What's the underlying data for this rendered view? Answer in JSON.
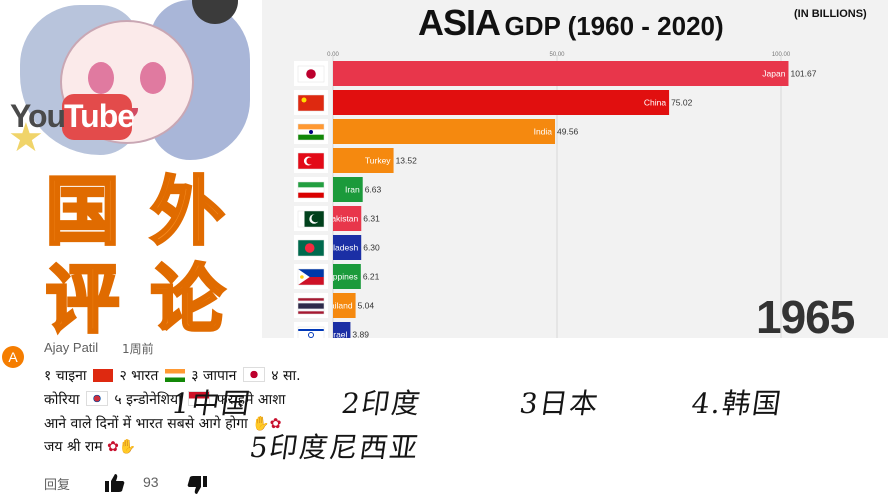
{
  "thumbnail": {
    "logo_you": "You",
    "logo_tube": "Tube",
    "label_chars": [
      "国",
      "外",
      "评",
      "论"
    ]
  },
  "chart": {
    "title_main": "ASIA",
    "title_rest": "GDP (1960 - 2020)",
    "unit": "(IN BILLIONS)",
    "year": "1965",
    "colors": {
      "red": "#e8364b",
      "red_dark": "#e10f0f",
      "orange": "#f5890f",
      "green": "#1b9a3b",
      "blue": "#1b2fa5",
      "grid": "#d8d8d8"
    }
  },
  "chart_data": {
    "type": "bar",
    "orientation": "horizontal",
    "xlim": [
      0,
      103
    ],
    "ticks": [
      {
        "value": 0,
        "label": "0.00"
      },
      {
        "value": 50,
        "label": "50.00"
      },
      {
        "value": 100,
        "label": "100.00"
      }
    ],
    "bars": [
      {
        "category": "Japan",
        "value": 101.67,
        "value_label": "101.67",
        "color": "#e8364b",
        "flag": "japan-flag-icon"
      },
      {
        "category": "China",
        "value": 75.02,
        "value_label": "75.02",
        "color": "#e10f0f",
        "flag": "china-flag-icon"
      },
      {
        "category": "India",
        "value": 49.56,
        "value_label": "49.56",
        "color": "#f5890f",
        "flag": "india-flag-icon"
      },
      {
        "category": "Turkey",
        "value": 13.52,
        "value_label": "13.52",
        "color": "#f5890f",
        "flag": "turkey-flag-icon"
      },
      {
        "category": "Iran",
        "value": 6.63,
        "value_label": "6.63",
        "color": "#1b9a3b",
        "flag": "iran-flag-icon"
      },
      {
        "category": "Pakistan",
        "value": 6.31,
        "value_label": "6.31",
        "color": "#e8364b",
        "flag": "pakistan-flag-icon"
      },
      {
        "category": "Bangladesh",
        "value": 6.3,
        "value_label": "6.30",
        "color": "#1b2fa5",
        "flag": "bangladesh-flag-icon"
      },
      {
        "category": "Philippines",
        "value": 6.21,
        "value_label": "6.21",
        "color": "#1b9a3b",
        "flag": "philippines-flag-icon"
      },
      {
        "category": "Thailand",
        "value": 5.04,
        "value_label": "5.04",
        "color": "#f5890f",
        "flag": "thailand-flag-icon"
      },
      {
        "category": "Israel",
        "value": 3.89,
        "value_label": "3.89",
        "color": "#1b2fa5",
        "flag": "israel-flag-icon"
      }
    ]
  },
  "comment": {
    "avatar_letter": "A",
    "author": "Ajay Patil",
    "time": "1周前",
    "line1": [
      "१ चाइना",
      "२ भारत",
      "३ जापान",
      "४ सा."
    ],
    "line2": [
      "कोरिया",
      "५ इन्डोनेशिया",
      "फर हमे आशा"
    ],
    "line3": "आने वाले दिनों में भारत सबसे आगे होगा",
    "line4": "जय श्री राम",
    "reply_label": "回复",
    "like_count": "93"
  },
  "overlay_translation": [
    "1中国",
    "2印度",
    "3日本",
    "4.韩国",
    "5印度尼西亚"
  ]
}
